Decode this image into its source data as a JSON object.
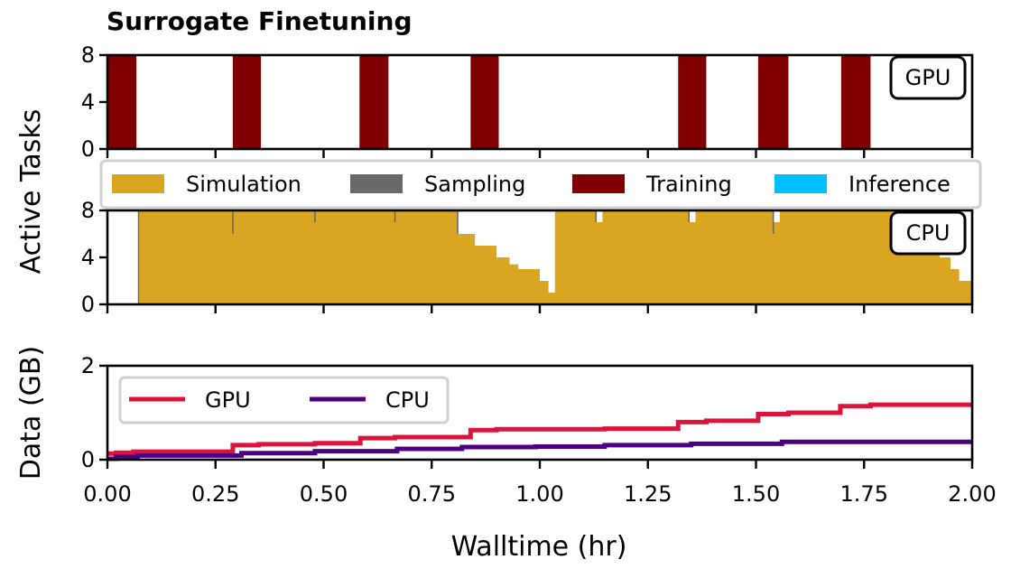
{
  "chart_data": [
    {
      "id": "gpu",
      "type": "area",
      "title": "Surrogate Finetuning",
      "tag": "GPU",
      "ylabel": "Active Tasks",
      "xlim": [
        0,
        2
      ],
      "ylim": [
        0,
        8
      ],
      "yticks": [
        0,
        4,
        8
      ],
      "grid": false,
      "series": [
        {
          "name": "Training",
          "color": "#800000",
          "segments": [
            [
              [
                0.0,
                8
              ],
              [
                0.067,
                8
              ]
            ],
            [
              [
                0.29,
                8
              ],
              [
                0.355,
                8
              ]
            ],
            [
              [
                0.583,
                8
              ],
              [
                0.65,
                8
              ]
            ],
            [
              [
                0.84,
                8
              ],
              [
                0.905,
                8
              ]
            ],
            [
              [
                1.32,
                8
              ],
              [
                1.385,
                8
              ]
            ],
            [
              [
                1.505,
                8
              ],
              [
                1.575,
                8
              ]
            ],
            [
              [
                1.697,
                8
              ],
              [
                1.765,
                8
              ]
            ]
          ]
        }
      ]
    },
    {
      "id": "cpu",
      "type": "area",
      "tag": "CPU",
      "xlim": [
        0,
        2
      ],
      "ylim": [
        0,
        8
      ],
      "yticks": [
        0,
        4,
        8
      ],
      "grid": false,
      "series": [
        {
          "name": "Simulation",
          "color": "#DAA520",
          "step": [
            [
              0.0,
              0
            ],
            [
              0.072,
              8
            ],
            [
              0.81,
              6
            ],
            [
              0.85,
              5
            ],
            [
              0.9,
              4
            ],
            [
              0.93,
              3.4
            ],
            [
              0.95,
              3
            ],
            [
              1.0,
              2
            ],
            [
              1.02,
              1
            ],
            [
              1.035,
              8
            ],
            [
              1.13,
              7
            ],
            [
              1.145,
              8
            ],
            [
              1.345,
              7
            ],
            [
              1.36,
              8
            ],
            [
              1.54,
              7
            ],
            [
              1.555,
              8
            ],
            [
              1.91,
              5
            ],
            [
              1.925,
              4
            ],
            [
              1.95,
              3
            ],
            [
              1.97,
              2
            ],
            [
              2.0,
              2
            ]
          ]
        },
        {
          "name": "Sampling",
          "color": "#696969",
          "spikes": [
            [
              0.072,
              8
            ],
            [
              0.29,
              6
            ],
            [
              0.48,
              7
            ],
            [
              0.665,
              7
            ],
            [
              0.81,
              6
            ],
            [
              1.13,
              7
            ],
            [
              1.345,
              7
            ],
            [
              1.54,
              6
            ]
          ]
        },
        {
          "name": "Training",
          "color": "#800000"
        },
        {
          "name": "Inference",
          "color": "#00BFFF"
        }
      ],
      "legend": {
        "placement": "top",
        "columns": 4
      }
    },
    {
      "id": "data",
      "type": "line",
      "ylabel": "Data (GB)",
      "xlabel": "Walltime (hr)",
      "xlim": [
        0,
        2
      ],
      "ylim": [
        0,
        2
      ],
      "yticks": [
        0,
        2
      ],
      "xticks": [
        "0.00",
        "0.25",
        "0.50",
        "0.75",
        "1.00",
        "1.25",
        "1.50",
        "1.75",
        "2.00"
      ],
      "grid": false,
      "legend": {
        "placement": "top-left",
        "columns": 2
      },
      "series": [
        {
          "name": "GPU",
          "color": "#DC143C",
          "step": [
            [
              0.0,
              0.13
            ],
            [
              0.02,
              0.15
            ],
            [
              0.06,
              0.17
            ],
            [
              0.29,
              0.31
            ],
            [
              0.35,
              0.33
            ],
            [
              0.48,
              0.35
            ],
            [
              0.585,
              0.46
            ],
            [
              0.665,
              0.48
            ],
            [
              0.84,
              0.63
            ],
            [
              0.9,
              0.65
            ],
            [
              1.15,
              0.66
            ],
            [
              1.32,
              0.8
            ],
            [
              1.385,
              0.83
            ],
            [
              1.505,
              0.97
            ],
            [
              1.575,
              1.0
            ],
            [
              1.695,
              1.14
            ],
            [
              1.765,
              1.17
            ],
            [
              2.0,
              1.17
            ]
          ]
        },
        {
          "name": "CPU",
          "color": "#4B0082",
          "step": [
            [
              0.0,
              0.02
            ],
            [
              0.02,
              0.06
            ],
            [
              0.07,
              0.09
            ],
            [
              0.31,
              0.14
            ],
            [
              0.48,
              0.18
            ],
            [
              0.67,
              0.23
            ],
            [
              0.82,
              0.27
            ],
            [
              0.99,
              0.28
            ],
            [
              1.15,
              0.31
            ],
            [
              1.35,
              0.34
            ],
            [
              1.56,
              0.38
            ],
            [
              2.0,
              0.38
            ]
          ]
        }
      ]
    }
  ]
}
